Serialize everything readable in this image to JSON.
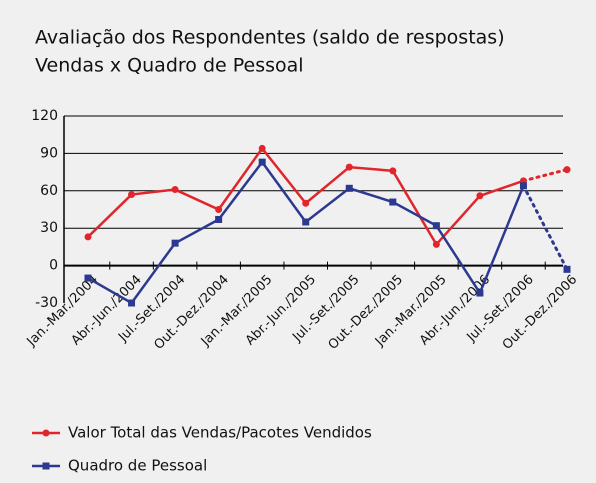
{
  "chart_data": {
    "type": "line",
    "title": "Avaliação dos Respondentes (saldo de respostas)",
    "subtitle": "Vendas x Quadro de Pessoal",
    "categories": [
      "Jan.-Mar./2004",
      "Abr.-Jun./2004",
      "Jul.-Set./2004",
      "Out.-Dez./2004",
      "Jan.-Mar./2005",
      "Abr.-Jun./2005",
      "Jul.-Set./2005",
      "Out.-Dez./2005",
      "Jan.-Mar./2005",
      "Abr.-Jun./2006",
      "Jul.-Set./2006",
      "Out.-Dez./2006"
    ],
    "series": [
      {
        "name": "Valor Total das Vendas/Pacotes Vendidos",
        "color": "#e0262b",
        "marker": "circle",
        "values": [
          23,
          57,
          61,
          45,
          94,
          50,
          79,
          76,
          17,
          56,
          68,
          77
        ],
        "dotted_last_segment": true
      },
      {
        "name": "Quadro de Pessoal",
        "color": "#2b3990",
        "marker": "square",
        "values": [
          -10,
          -30,
          18,
          37,
          83,
          35,
          62,
          51,
          32,
          -22,
          64,
          -3
        ],
        "dotted_last_segment": true
      }
    ],
    "ylim": [
      -30,
      120
    ],
    "yticks": [
      -30,
      0,
      30,
      60,
      90,
      120
    ],
    "grid": true,
    "legend": "bottom"
  }
}
